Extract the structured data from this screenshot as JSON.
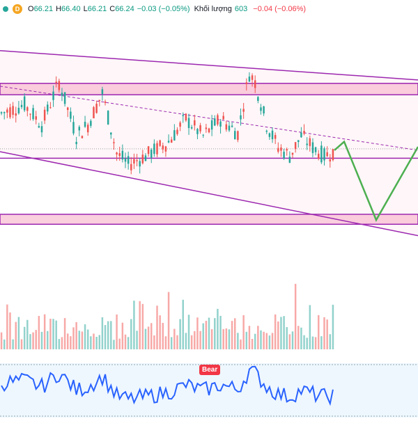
{
  "legend": {
    "open_label": "O",
    "open_value": "66.21",
    "high_label": "H",
    "high_value": "66.40",
    "low_label": "L",
    "low_value": "66.21",
    "close_label": "C",
    "close_value": "66.24",
    "change": "−0.03 (−0.05%)",
    "volume_label": "Khối lượng",
    "volume_value": "603",
    "volume_change": "−0.04 (−0.06%)",
    "interval_badge": "D"
  },
  "colors": {
    "up": "#26a69a",
    "down": "#ef5350",
    "channel": "#9c27b0",
    "zone_fill": "#f8bbd0",
    "projection": "#4caf50",
    "oscillator": "#2962ff",
    "oscillator_bg": "#e3f2fd"
  },
  "oscillator": {
    "bear_label": "Bear"
  },
  "chart_data": {
    "type": "candlestick",
    "title": "",
    "xlabel": "",
    "ylabel": "",
    "ylim": [
      62.0,
      70.8
    ],
    "grid": false,
    "price_zones": [
      {
        "low": 68.45,
        "high": 68.85
      },
      {
        "low": 63.9,
        "high": 64.25
      }
    ],
    "support_line": 66.22,
    "dotted_price": 66.55,
    "channel_upper": {
      "start": 70.0,
      "end": 68.97
    },
    "channel_lower": {
      "start": 66.45,
      "end": 63.5
    },
    "midline": {
      "start": 68.75,
      "end": 66.5
    },
    "projection_path": [
      66.5,
      66.8,
      64.05,
      66.62
    ],
    "candle_count": 100,
    "volume_range": [
      300,
      2200
    ],
    "oscillator_range": [
      20,
      80
    ]
  }
}
